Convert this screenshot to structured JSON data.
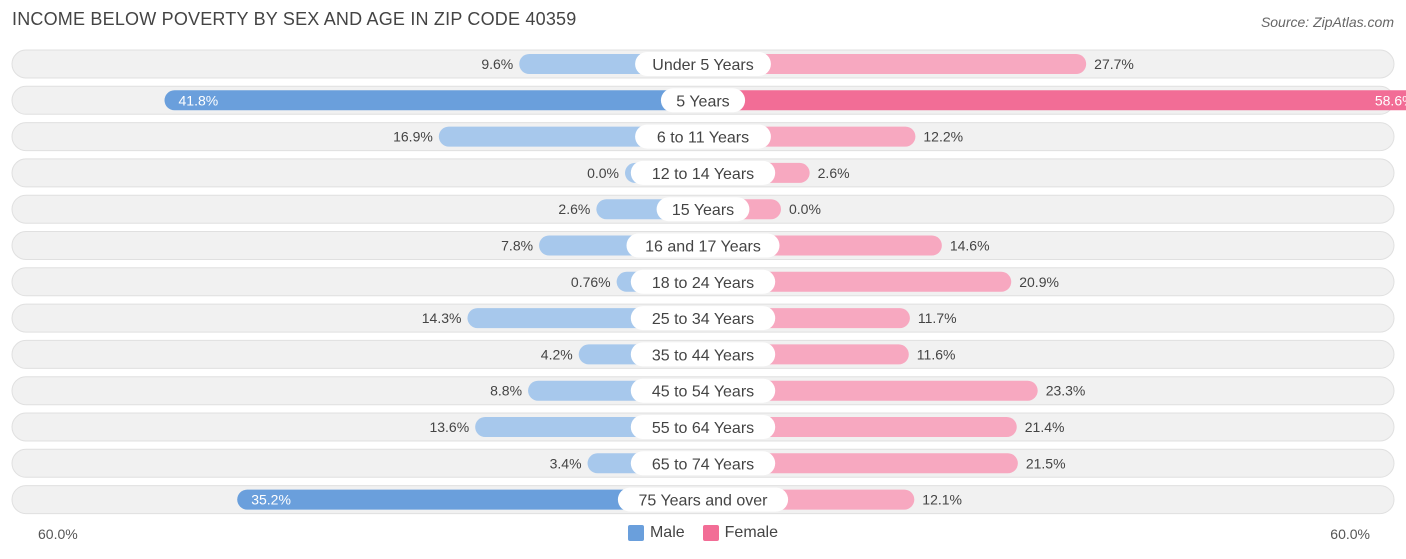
{
  "title": "INCOME BELOW POVERTY BY SEX AND AGE IN ZIP CODE 40359",
  "source": "Source: ZipAtlas.com",
  "axis": {
    "left_label": "60.0%",
    "right_label": "60.0%"
  },
  "legend": [
    {
      "label": "Male",
      "color": "#6a9fdc"
    },
    {
      "label": "Female",
      "color": "#f26d96"
    }
  ],
  "chart_data": {
    "type": "bar",
    "orientation": "horizontal-diverging",
    "title": "INCOME BELOW POVERTY BY SEX AND AGE IN ZIP CODE 40359",
    "xlim": [
      -60,
      60
    ],
    "categories": [
      "Under 5 Years",
      "5 Years",
      "6 to 11 Years",
      "12 to 14 Years",
      "15 Years",
      "16 and 17 Years",
      "18 to 24 Years",
      "25 to 34 Years",
      "35 to 44 Years",
      "45 to 54 Years",
      "55 to 64 Years",
      "65 to 74 Years",
      "75 Years and over"
    ],
    "series": [
      {
        "name": "Male",
        "values": [
          9.6,
          41.8,
          16.9,
          0.0,
          2.6,
          7.8,
          0.76,
          14.3,
          4.2,
          8.8,
          13.6,
          3.4,
          35.2
        ],
        "labels": [
          "9.6%",
          "41.8%",
          "16.9%",
          "0.0%",
          "2.6%",
          "7.8%",
          "0.76%",
          "14.3%",
          "4.2%",
          "8.8%",
          "13.6%",
          "3.4%",
          "35.2%"
        ]
      },
      {
        "name": "Female",
        "values": [
          27.7,
          58.6,
          12.2,
          2.6,
          0.0,
          14.6,
          20.9,
          11.7,
          11.6,
          23.3,
          21.4,
          21.5,
          12.1
        ],
        "labels": [
          "27.7%",
          "58.6%",
          "12.2%",
          "2.6%",
          "0.0%",
          "14.6%",
          "20.9%",
          "11.7%",
          "11.6%",
          "23.3%",
          "21.4%",
          "21.5%",
          "12.1%"
        ]
      }
    ],
    "colors": {
      "male_light": "#a7c8ec",
      "male_strong": "#6a9fdc",
      "female_light": "#f7a8c0",
      "female_strong": "#f26d96",
      "track": "#f1f1f1",
      "track_border": "#e0e0e0"
    },
    "legend_position": "bottom-center"
  }
}
